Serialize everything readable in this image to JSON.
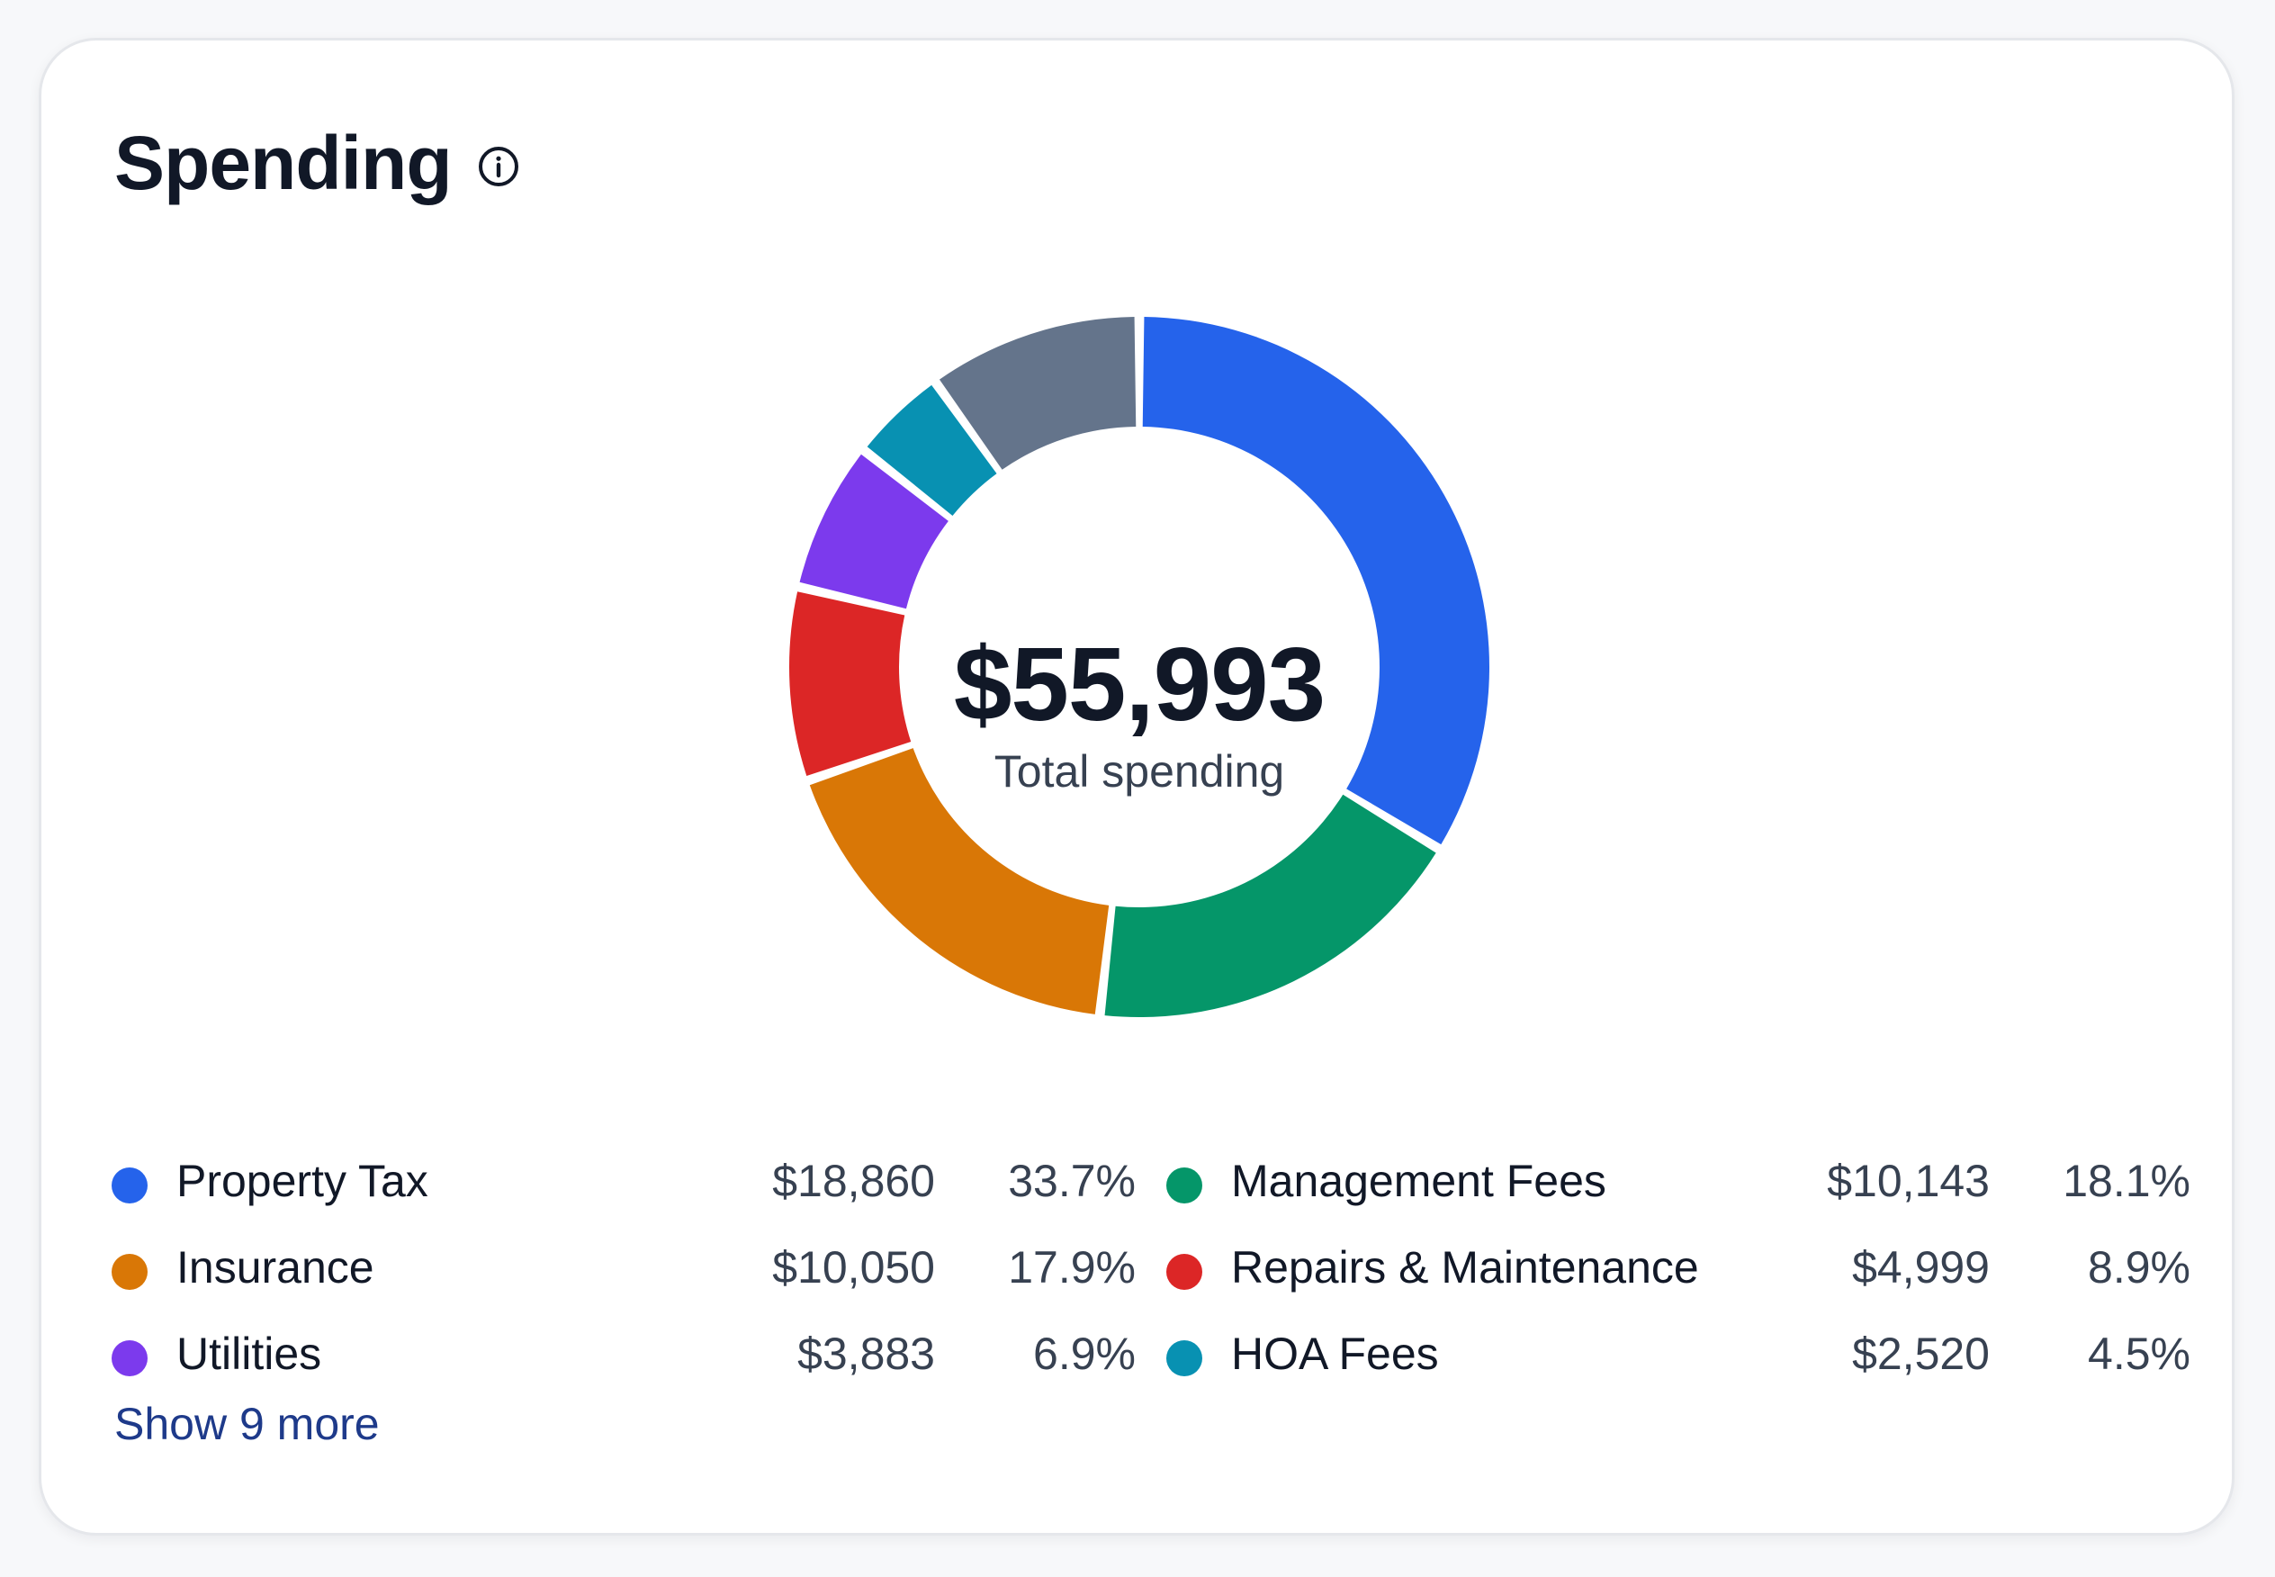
{
  "card": {
    "title": "Spending",
    "info_icon": "info-icon"
  },
  "chart_data": {
    "type": "pie",
    "variant": "donut",
    "center_value": "$55,993",
    "center_label": "Total spending",
    "slices": [
      {
        "name": "Property Tax",
        "amount": "$18,860",
        "value": 18860,
        "percent": "33.7%",
        "color": "#2563eb"
      },
      {
        "name": "Management Fees",
        "amount": "$10,143",
        "value": 10143,
        "percent": "18.1%",
        "color": "#059669"
      },
      {
        "name": "Insurance",
        "amount": "$10,050",
        "value": 10050,
        "percent": "17.9%",
        "color": "#d97706"
      },
      {
        "name": "Repairs & Maintenance",
        "amount": "$4,999",
        "value": 4999,
        "percent": "8.9%",
        "color": "#dc2626"
      },
      {
        "name": "Utilities",
        "amount": "$3,883",
        "value": 3883,
        "percent": "6.9%",
        "color": "#7c3aed"
      },
      {
        "name": "HOA Fees",
        "amount": "$2,520",
        "value": 2520,
        "percent": "4.5%",
        "color": "#0891b2"
      },
      {
        "value": 5538,
        "color": "#64748b"
      }
    ]
  },
  "legend": {
    "items": [
      {
        "name": "Property Tax",
        "amount": "$18,860",
        "percent": "33.7%",
        "color": "#2563eb"
      },
      {
        "name": "Management Fees",
        "amount": "$10,143",
        "percent": "18.1%",
        "color": "#059669"
      },
      {
        "name": "Insurance",
        "amount": "$10,050",
        "percent": "17.9%",
        "color": "#d97706"
      },
      {
        "name": "Repairs & Maintenance",
        "amount": "$4,999",
        "percent": "8.9%",
        "color": "#dc2626"
      },
      {
        "name": "Utilities",
        "amount": "$3,883",
        "percent": "6.9%",
        "color": "#7c3aed"
      },
      {
        "name": "HOA Fees",
        "amount": "$2,520",
        "percent": "4.5%",
        "color": "#0891b2"
      }
    ],
    "show_more_label": "Show 9 more"
  }
}
